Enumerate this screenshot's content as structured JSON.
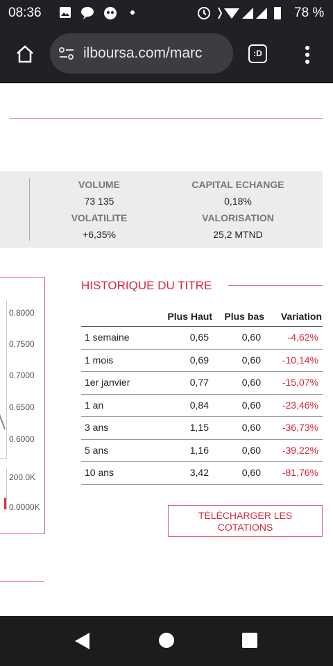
{
  "status_bar": {
    "time": "08:36",
    "battery": "78 %"
  },
  "browser": {
    "url": "ilboursa.com/marc",
    "tab_label": ":D"
  },
  "stats": [
    {
      "label": "VOLUME",
      "value": "73 135"
    },
    {
      "label": "CAPITAL ECHANGE",
      "value": "0,18%"
    },
    {
      "label": "VOLATILITE",
      "value": "+6,35%"
    },
    {
      "label": "VALORISATION",
      "value": "25,2 MTND"
    }
  ],
  "chart_axis_labels": [
    "0.8000",
    "0.7500",
    "0.7000",
    "0.6500",
    "0.6000",
    "200.0K",
    "0.0000K"
  ],
  "history": {
    "title": "HISTORIQUE DU TITRE",
    "columns": [
      "Plus Haut",
      "Plus bas",
      "Variation"
    ],
    "rows": [
      [
        "1 semaine",
        "0,65",
        "0,60",
        "-4,62%"
      ],
      [
        "1 mois",
        "0,69",
        "0,60",
        "-10,14%"
      ],
      [
        "1er janvier",
        "0,77",
        "0,60",
        "-15,07%"
      ],
      [
        "1 an",
        "0,84",
        "0,60",
        "-23,46%"
      ],
      [
        "3 ans",
        "1,15",
        "0,60",
        "-36,73%"
      ],
      [
        "5 ans",
        "1,16",
        "0,60",
        "-39,22%"
      ],
      [
        "10 ans",
        "3,42",
        "0,60",
        "-81,76%"
      ]
    ],
    "button_lines": [
      "TÉLÉCHARGER LES",
      "COTATIONS"
    ]
  }
}
